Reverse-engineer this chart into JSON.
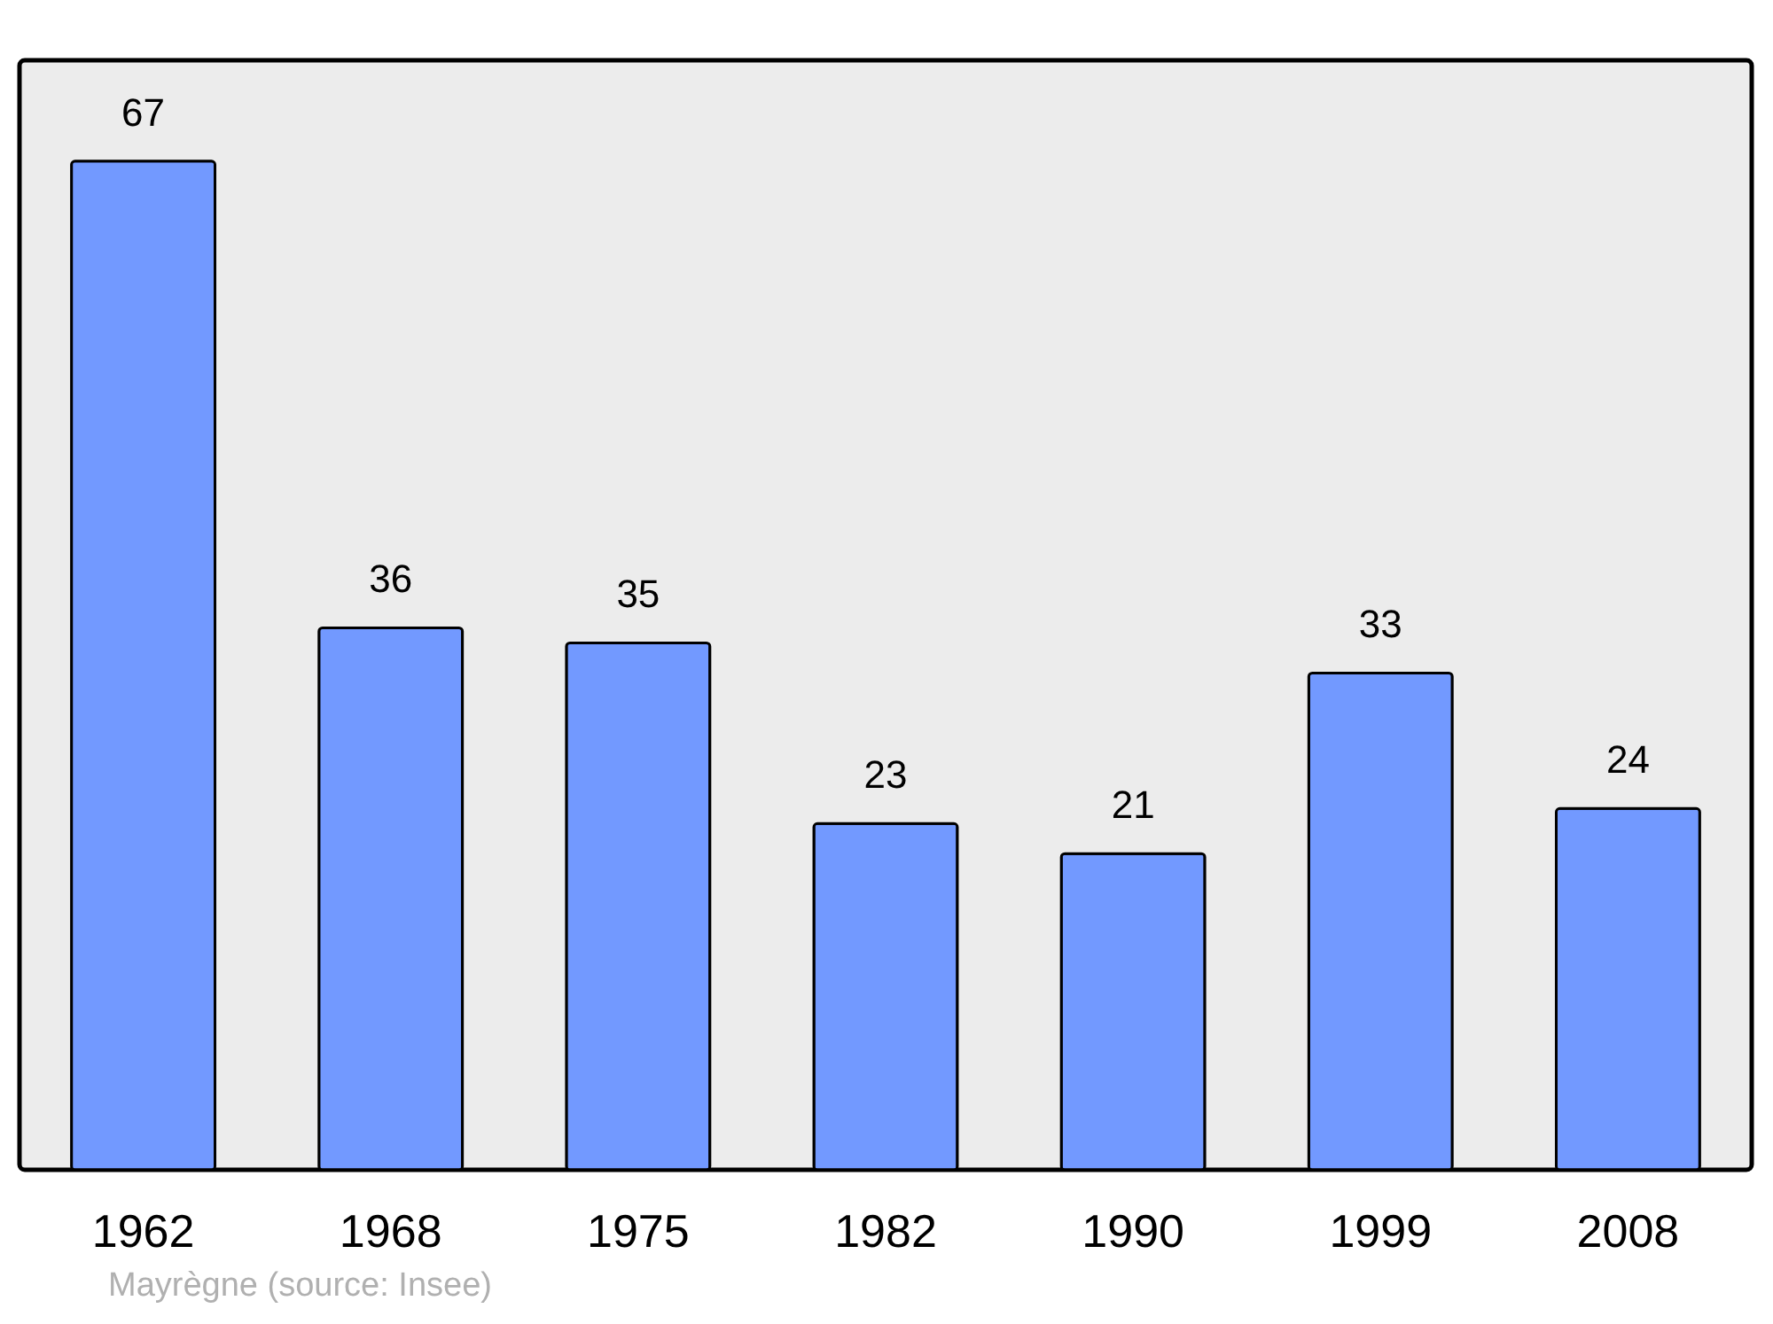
{
  "chart_data": {
    "type": "bar",
    "categories": [
      "1962",
      "1968",
      "1975",
      "1982",
      "1990",
      "1999",
      "2008"
    ],
    "values": [
      67,
      36,
      35,
      23,
      21,
      33,
      24
    ],
    "color": "#7299ff",
    "data_labels": true,
    "annotations": [
      "Mayrègne    (source: Insee)"
    ]
  }
}
